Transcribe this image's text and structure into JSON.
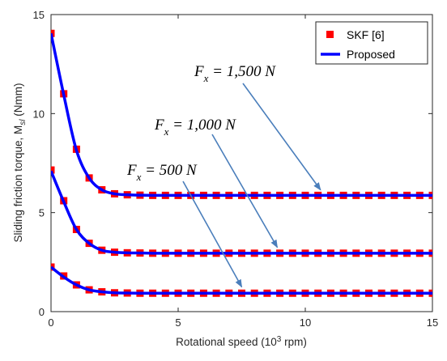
{
  "chart_data": {
    "type": "line",
    "xlabel": "Rotational speed (10",
    "xlabel_sup": "3",
    "xlabel_tail": " rpm)",
    "ylabel": "Sliding friction torque, M",
    "ylabel_sub": "sl",
    "ylabel_tail": " (Nmm)",
    "xlim": [
      0,
      15
    ],
    "ylim": [
      0,
      15
    ],
    "xticks": [
      0,
      5,
      10,
      15
    ],
    "xtick_labels": [
      "0",
      "5",
      "10",
      "15"
    ],
    "yticks": [
      0,
      5,
      10,
      15
    ],
    "ytick_labels": [
      "0",
      "5",
      "10",
      "15"
    ],
    "grid": false,
    "legend_position": "top-right",
    "legend": [
      {
        "label": "SKF [6]",
        "marker": "square",
        "color": "#ff0000"
      },
      {
        "label": "Proposed",
        "marker": "line",
        "color": "#0000ff"
      }
    ],
    "x": [
      0,
      0.5,
      1,
      1.5,
      2,
      2.5,
      3,
      3.5,
      4,
      4.5,
      5,
      5.5,
      6,
      6.5,
      7,
      7.5,
      8,
      8.5,
      9,
      9.5,
      10,
      10.5,
      11,
      11.5,
      12,
      12.5,
      13,
      13.5,
      14,
      14.5,
      15
    ],
    "series": [
      {
        "load": "Fx = 1,500 N",
        "skf": [
          14.05,
          11.0,
          8.2,
          6.75,
          6.15,
          5.95,
          5.9,
          5.88,
          5.87,
          5.87,
          5.87,
          5.87,
          5.87,
          5.87,
          5.87,
          5.87,
          5.87,
          5.87,
          5.87,
          5.87,
          5.87,
          5.87,
          5.87,
          5.87,
          5.87,
          5.87,
          5.87,
          5.87,
          5.87,
          5.87,
          5.87
        ],
        "proposed": [
          14.05,
          10.95,
          8.15,
          6.75,
          6.15,
          5.95,
          5.9,
          5.88,
          5.87,
          5.87,
          5.87,
          5.87,
          5.87,
          5.87,
          5.87,
          5.87,
          5.87,
          5.87,
          5.87,
          5.87,
          5.87,
          5.87,
          5.87,
          5.87,
          5.87,
          5.87,
          5.87,
          5.87,
          5.87,
          5.87,
          5.87
        ]
      },
      {
        "load": "Fx = 1,000 N",
        "skf": [
          7.15,
          5.6,
          4.15,
          3.45,
          3.1,
          3.0,
          2.97,
          2.96,
          2.95,
          2.95,
          2.95,
          2.95,
          2.95,
          2.95,
          2.95,
          2.95,
          2.95,
          2.95,
          2.95,
          2.95,
          2.95,
          2.95,
          2.95,
          2.95,
          2.95,
          2.95,
          2.95,
          2.95,
          2.95,
          2.95,
          2.95
        ],
        "proposed": [
          7.1,
          5.55,
          4.15,
          3.45,
          3.1,
          3.0,
          2.97,
          2.96,
          2.95,
          2.95,
          2.95,
          2.95,
          2.95,
          2.95,
          2.95,
          2.95,
          2.95,
          2.95,
          2.95,
          2.95,
          2.95,
          2.95,
          2.95,
          2.95,
          2.95,
          2.95,
          2.95,
          2.95,
          2.95,
          2.95,
          2.95
        ]
      },
      {
        "load": "Fx = 500 N",
        "skf": [
          2.25,
          1.8,
          1.35,
          1.1,
          1.0,
          0.95,
          0.94,
          0.93,
          0.93,
          0.93,
          0.93,
          0.93,
          0.93,
          0.93,
          0.93,
          0.93,
          0.93,
          0.93,
          0.93,
          0.93,
          0.93,
          0.93,
          0.93,
          0.93,
          0.93,
          0.93,
          0.93,
          0.93,
          0.93,
          0.93,
          0.93
        ],
        "proposed": [
          2.25,
          1.75,
          1.35,
          1.1,
          1.0,
          0.95,
          0.94,
          0.93,
          0.93,
          0.93,
          0.93,
          0.93,
          0.93,
          0.93,
          0.93,
          0.93,
          0.93,
          0.93,
          0.93,
          0.93,
          0.93,
          0.93,
          0.93,
          0.93,
          0.93,
          0.93,
          0.93,
          0.93,
          0.93,
          0.93,
          0.93
        ]
      }
    ],
    "annotations": [
      {
        "prefix": "F",
        "sub": "x",
        "text": " = 1,500 N",
        "arrow_to": [
          10.6,
          5.9
        ]
      },
      {
        "prefix": "F",
        "sub": "x",
        "text": " = 1,000 N",
        "arrow_to": [
          8.9,
          3.0
        ]
      },
      {
        "prefix": "F",
        "sub": "x",
        "text": " = 500 N",
        "arrow_to": [
          7.5,
          1.0
        ]
      }
    ],
    "colors": {
      "skf": "#ff0000",
      "proposed": "#0000ff",
      "arrow": "#4a7ebb",
      "axis": "#262626"
    }
  }
}
